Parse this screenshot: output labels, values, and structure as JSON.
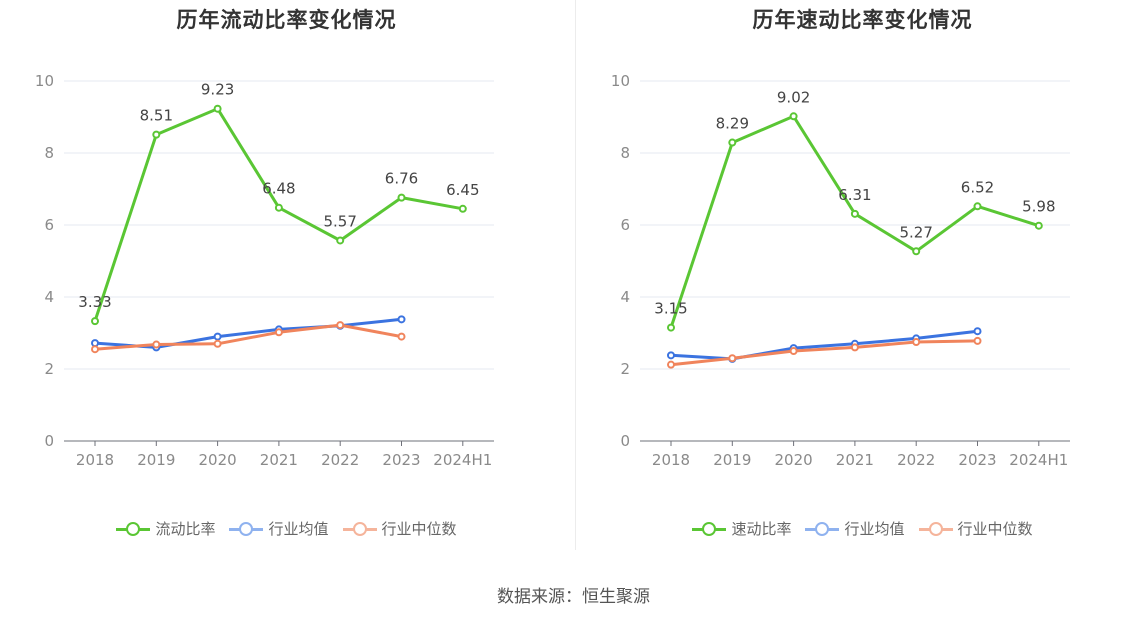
{
  "chart_data": [
    {
      "type": "line",
      "title": "历年流动比率变化情况",
      "categories": [
        "2018",
        "2019",
        "2020",
        "2021",
        "2022",
        "2023",
        "2024H1"
      ],
      "ylim": [
        0,
        10
      ],
      "yticks": [
        0,
        2,
        4,
        6,
        8,
        10
      ],
      "grid": true,
      "legend_position": "bottom",
      "series": [
        {
          "name": "流动比率",
          "color": "#5ac634",
          "labeled": true,
          "values": [
            3.33,
            8.51,
            9.23,
            6.48,
            5.57,
            6.76,
            6.45
          ],
          "labels": [
            "3.33",
            "8.51",
            "9.23",
            "6.48",
            "5.57",
            "6.76",
            "6.45"
          ]
        },
        {
          "name": "行业均值",
          "color": "#3b73e0",
          "labeled": false,
          "values": [
            2.72,
            2.6,
            2.9,
            3.1,
            3.2,
            3.38,
            null
          ]
        },
        {
          "name": "行业中位数",
          "color": "#f0845c",
          "labeled": false,
          "values": [
            2.55,
            2.68,
            2.7,
            3.02,
            3.22,
            2.9,
            null
          ]
        }
      ]
    },
    {
      "type": "line",
      "title": "历年速动比率变化情况",
      "categories": [
        "2018",
        "2019",
        "2020",
        "2021",
        "2022",
        "2023",
        "2024H1"
      ],
      "ylim": [
        0,
        10
      ],
      "yticks": [
        0,
        2,
        4,
        6,
        8,
        10
      ],
      "grid": true,
      "legend_position": "bottom",
      "series": [
        {
          "name": "速动比率",
          "color": "#5ac634",
          "labeled": true,
          "values": [
            3.15,
            8.29,
            9.02,
            6.31,
            5.27,
            6.52,
            5.98
          ],
          "labels": [
            "3.15",
            "8.29",
            "9.02",
            "6.31",
            "5.27",
            "6.52",
            "5.98"
          ]
        },
        {
          "name": "行业均值",
          "color": "#3b73e0",
          "labeled": false,
          "values": [
            2.38,
            2.28,
            2.58,
            2.7,
            2.85,
            3.05,
            null
          ]
        },
        {
          "name": "行业中位数",
          "color": "#f0845c",
          "labeled": false,
          "values": [
            2.12,
            2.3,
            2.5,
            2.6,
            2.75,
            2.78,
            null
          ]
        }
      ]
    }
  ],
  "legend_colors": [
    "#5ac634",
    "#8fb2ef",
    "#f5b49b"
  ],
  "source": "数据来源：恒生聚源"
}
